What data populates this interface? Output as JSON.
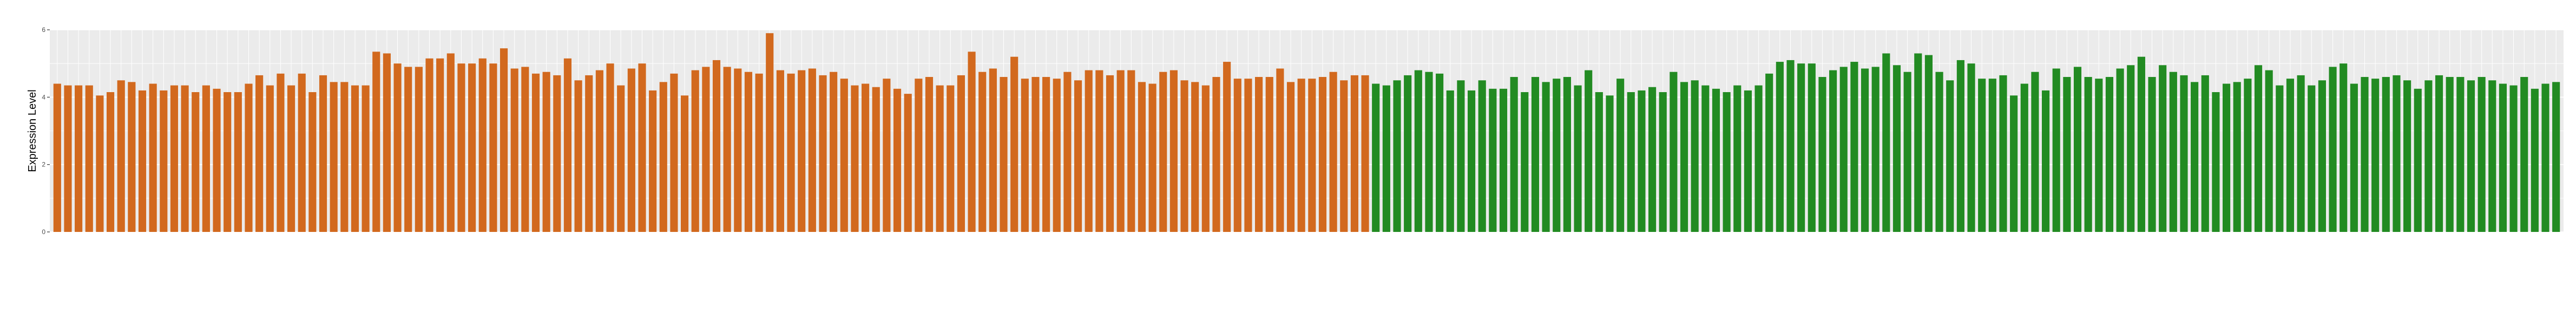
{
  "chart_data": {
    "type": "bar",
    "title": "",
    "xlabel": "",
    "ylabel": "Expression Level",
    "ylim": [
      0,
      6
    ],
    "yticks": [
      0,
      2,
      4,
      6
    ],
    "grid": true,
    "legend": "none",
    "colors": {
      "orange": "#D2691E",
      "green": "#228B22",
      "panel": "#EBEBEB",
      "grid": "#FFFFFF"
    },
    "series": [
      {
        "color_key": "orange",
        "values": [
          4.4,
          4.35,
          4.35,
          4.35,
          4.05,
          4.15,
          4.5,
          4.45,
          4.2,
          4.4,
          4.2,
          4.35,
          4.35,
          4.15,
          4.35,
          4.25,
          4.15,
          4.15,
          4.4,
          4.65,
          4.35,
          4.7,
          4.35,
          4.7,
          4.15,
          4.65,
          4.45,
          4.45,
          4.35,
          4.35,
          5.35,
          5.3,
          5.0,
          4.9,
          4.9,
          5.15,
          5.15,
          5.3,
          5.0,
          5.0,
          5.15,
          5.0,
          5.45,
          4.85,
          4.9,
          4.7,
          4.75,
          4.65,
          5.15,
          4.5,
          4.65,
          4.8,
          5.0,
          4.35,
          4.85,
          5.0,
          4.2,
          4.45,
          4.7,
          4.05,
          4.8,
          4.9,
          5.1,
          4.9,
          4.85,
          4.75,
          4.7,
          5.9,
          4.8,
          4.7,
          4.8,
          4.85,
          4.65,
          4.75,
          4.55,
          4.35,
          4.4,
          4.3,
          4.55,
          4.25,
          4.1,
          4.55,
          4.6,
          4.35,
          4.35,
          4.65,
          5.35,
          4.75,
          4.85,
          4.6,
          5.2,
          4.55,
          4.6,
          4.6,
          4.55,
          4.75,
          4.5,
          4.8,
          4.8,
          4.65,
          4.8,
          4.8,
          4.45,
          4.4,
          4.75,
          4.8,
          4.5,
          4.45,
          4.35,
          4.6,
          5.05,
          4.55,
          4.55,
          4.6,
          4.6,
          4.85,
          4.45,
          4.55,
          4.55,
          4.6,
          4.75,
          4.5,
          4.65,
          4.65
        ]
      },
      {
        "color_key": "green",
        "values": [
          4.4,
          4.35,
          4.5,
          4.65,
          4.8,
          4.75,
          4.7,
          4.2,
          4.5,
          4.2,
          4.5,
          4.25,
          4.25,
          4.6,
          4.15,
          4.6,
          4.45,
          4.55,
          4.6,
          4.35,
          4.8,
          4.15,
          4.05,
          4.55,
          4.15,
          4.2,
          4.3,
          4.15,
          4.75,
          4.45,
          4.5,
          4.35,
          4.25,
          4.15,
          4.35,
          4.2,
          4.35,
          4.7,
          5.05,
          5.1,
          5.0,
          5.0,
          4.6,
          4.8,
          4.9,
          5.05,
          4.85,
          4.9,
          5.3,
          4.95,
          4.75,
          5.3,
          5.25,
          4.75,
          4.5,
          5.1,
          5.0,
          4.55,
          4.55,
          4.65,
          4.05,
          4.4,
          4.75,
          4.2,
          4.85,
          4.6,
          4.9,
          4.6,
          4.55,
          4.6,
          4.85,
          4.95,
          5.2,
          4.6,
          4.95,
          4.75,
          4.65,
          4.45,
          4.65,
          4.15,
          4.4,
          4.45,
          4.55,
          4.95,
          4.8,
          4.35,
          4.55,
          4.65,
          4.35,
          4.5,
          4.9,
          5.0,
          4.4,
          4.6,
          4.55,
          4.6,
          4.65,
          4.5,
          4.25,
          4.5,
          4.65,
          4.6,
          4.6,
          4.5,
          4.6,
          4.5,
          4.4,
          4.35,
          4.6,
          4.25,
          4.4,
          4.45
        ]
      }
    ]
  }
}
